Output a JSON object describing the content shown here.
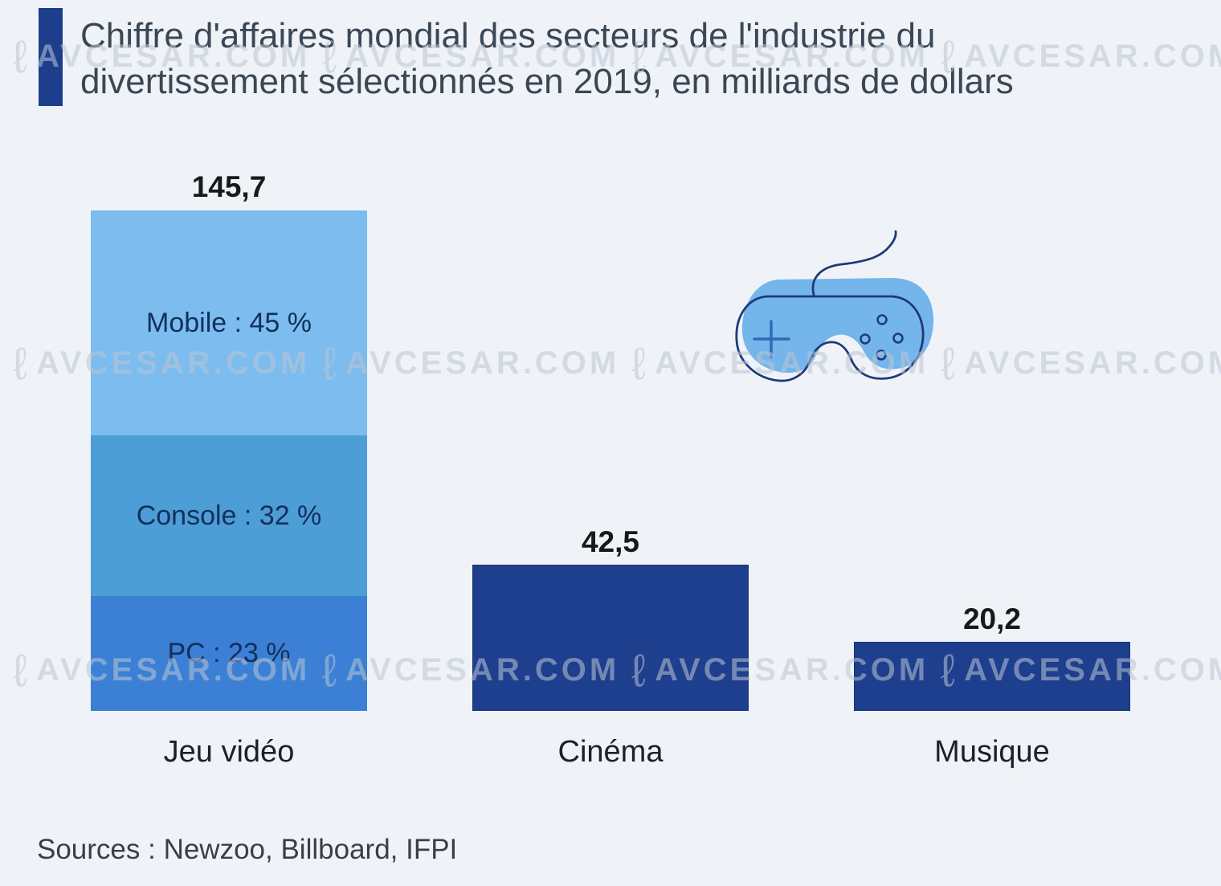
{
  "title": {
    "line1": "Chiffre d'affaires mondial des secteurs de l'industrie du",
    "line2": "divertissement sélectionnés en 2019, en milliards de dollars"
  },
  "source_note": "Sources : Newzoo, Billboard, IFPI",
  "watermark": "AVCESAR.COM",
  "colors": {
    "background": "#eff3f8",
    "accent_navy": "#1c3e8c",
    "navy_bar": "#1e3e8e",
    "title_text": "#3b4754",
    "value_text": "#17191d",
    "category_text": "#1c2127",
    "segment_text": "#132f5c",
    "source_text": "#383f46",
    "watermark_grey": "#bbc4d3"
  },
  "illustration": {
    "name": "game-controller",
    "fill": "#74b5ec",
    "outline": "#1e3a78",
    "dpad": "#2e6cb5"
  },
  "chart_data": {
    "type": "bar",
    "title": "Chiffre d'affaires mondial des secteurs de l'industrie du divertissement sélectionnés en 2019, en milliards de dollars",
    "unit": "milliards de dollars",
    "categories": [
      "Jeu vidéo",
      "Cinéma",
      "Musique"
    ],
    "values": [
      145.7,
      42.5,
      20.2
    ],
    "ylim": [
      0,
      145.7
    ],
    "grid": false,
    "legend": false,
    "bars": [
      {
        "category": "Jeu vidéo",
        "value": 145.7,
        "value_label": "145,7",
        "stacked": true,
        "segments": [
          {
            "name": "Mobile",
            "pct": 45,
            "label": "Mobile : 45 %",
            "color": "#7cbcee"
          },
          {
            "name": "Console",
            "pct": 32,
            "label": "Console : 32 %",
            "color": "#4d9dd6"
          },
          {
            "name": "PC",
            "pct": 23,
            "label": "PC : 23 %",
            "color": "#3b80d4"
          }
        ]
      },
      {
        "category": "Cinéma",
        "value": 42.5,
        "value_label": "42,5",
        "color": "#1e3e8e"
      },
      {
        "category": "Musique",
        "value": 20.2,
        "value_label": "20,2",
        "color": "#1e3e8e"
      }
    ]
  }
}
